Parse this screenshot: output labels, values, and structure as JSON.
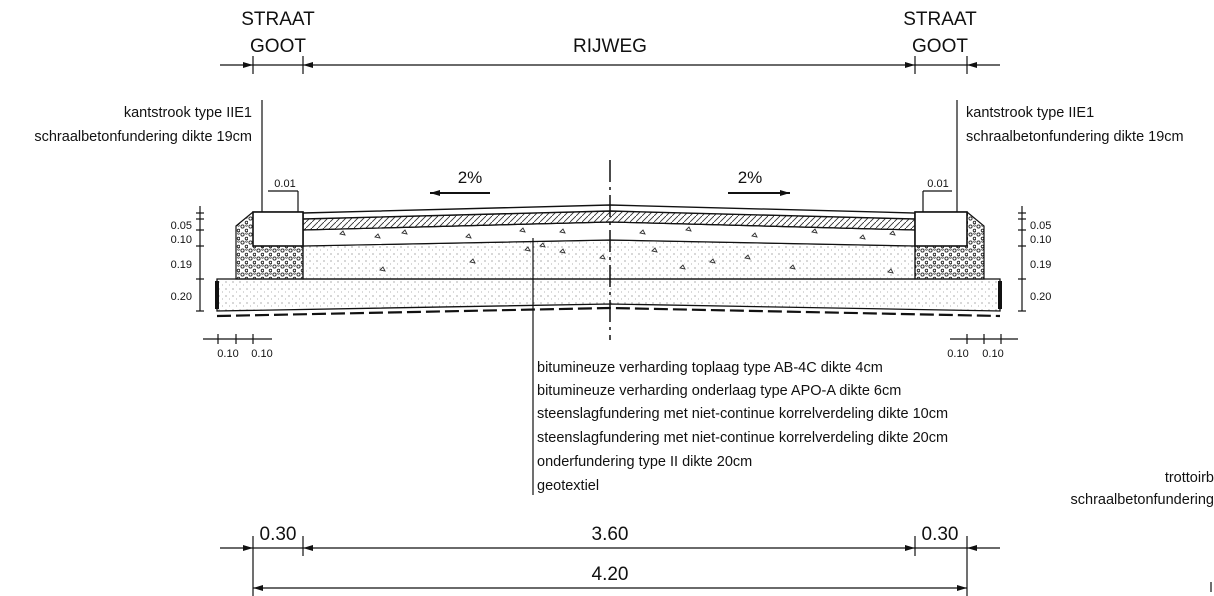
{
  "header": {
    "left_label_line1": "STRAAT",
    "left_label_line2": "GOOT",
    "center_label": "RIJWEG",
    "right_label_line1": "STRAAT",
    "right_label_line2": "GOOT"
  },
  "curb_notes": {
    "left": [
      "kantstrook type IIE1",
      "schraalbetonfundering dikte 19cm"
    ],
    "right": [
      "kantstrook type IIE1",
      "schraalbetonfundering dikte 19cm"
    ]
  },
  "slopes": {
    "left": "2%",
    "right": "2%"
  },
  "gap_label": "0.01",
  "layer_thickness_labels": [
    "0.05",
    "0.10",
    "0.19",
    "0.20"
  ],
  "small_widths": [
    "0.10",
    "0.10"
  ],
  "layer_legend": [
    "bitumineuze verharding toplaag type AB-4C dikte 4cm",
    "bitumineuze verharding onderlaag type APO-A dikte 6cm",
    "steenslagfundering met niet-continue korrelverdeling dikte 10cm",
    "steenslagfundering met niet-continue korrelverdeling dikte 20cm",
    "onderfundering type II dikte 20cm",
    "geotextiel"
  ],
  "cut_off_note": [
    "trottoirb",
    "schraalbetonfundering"
  ],
  "dimensions": {
    "left_gutter": "0.30",
    "carriageway": "3.60",
    "right_gutter": "0.30",
    "total": "4.20"
  }
}
